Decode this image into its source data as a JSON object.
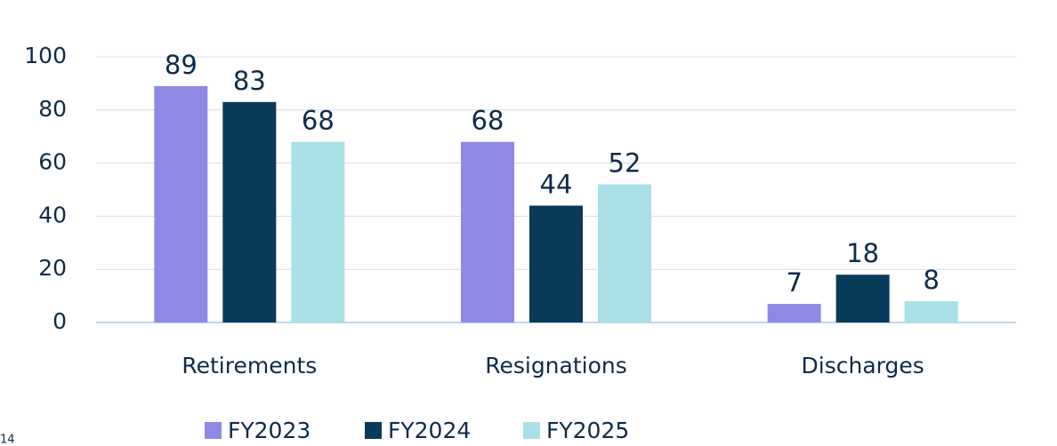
{
  "chart_data": {
    "type": "bar",
    "categories": [
      "Retirements",
      "Resignations",
      "Discharges"
    ],
    "series": [
      {
        "name": "FY2023",
        "color": "#8f89e6",
        "values": [
          89,
          68,
          7
        ]
      },
      {
        "name": "FY2024",
        "color": "#0a3a5a",
        "values": [
          83,
          44,
          18
        ]
      },
      {
        "name": "FY2025",
        "color": "#a8e0e6",
        "values": [
          68,
          52,
          8
        ]
      }
    ],
    "ylim": [
      0,
      100
    ],
    "yticks": [
      0,
      20,
      40,
      60,
      80,
      100
    ],
    "grid": true,
    "legend": "bottom"
  },
  "page_number": "14"
}
